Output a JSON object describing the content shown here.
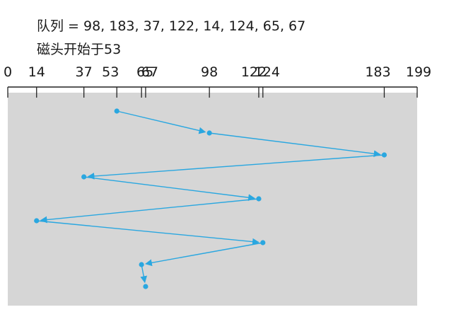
{
  "caption": {
    "queue": "队列 = 98, 183, 37, 122, 14, 124, 65, 67",
    "head_start": "磁头开始于53"
  },
  "axis": {
    "min": 0,
    "max": 199,
    "ticks": [
      0,
      14,
      37,
      53,
      65,
      67,
      98,
      122,
      124,
      183,
      199
    ],
    "tick_labels": [
      "0",
      "14",
      "37",
      "53",
      "65",
      "67",
      "98",
      "122",
      "124",
      "183",
      "199"
    ]
  },
  "colors": {
    "panel": "#d6d6d6",
    "path": "#2aa7e0",
    "axis": "#222222"
  },
  "chart_data": {
    "type": "line",
    "title": "",
    "head_start": 53,
    "queue": [
      98,
      183,
      37,
      122,
      14,
      124,
      65,
      67
    ],
    "service_order": [
      53,
      98,
      183,
      37,
      122,
      14,
      124,
      65,
      67
    ],
    "xlim": [
      0,
      199
    ]
  }
}
